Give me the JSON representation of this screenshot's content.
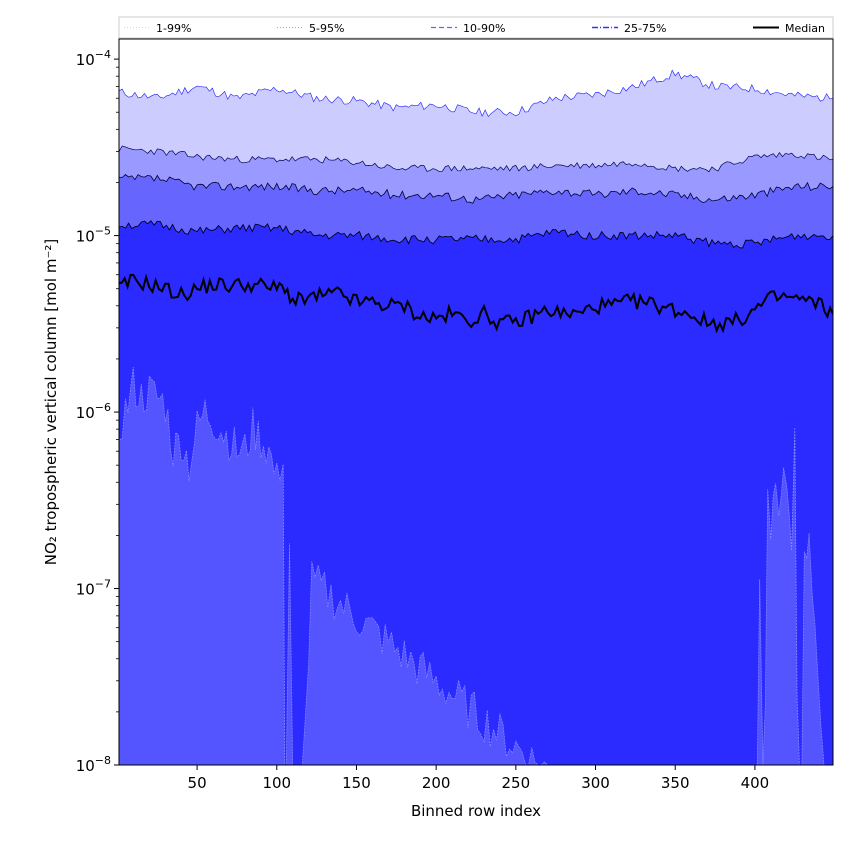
{
  "chart_data": {
    "type": "area",
    "xlabel": "Binned row index",
    "ylabel": "NO₂ tropospheric vertical column [mol m⁻²]",
    "xlim": [
      1,
      449
    ],
    "ylim": [
      1e-08,
      0.00013
    ],
    "yscale": "log",
    "grid": false,
    "legend_position": "top",
    "x_ticks": [
      50,
      100,
      150,
      200,
      250,
      300,
      350,
      400
    ],
    "x_tick_labels": [
      "50",
      "100",
      "150",
      "200",
      "250",
      "300",
      "350",
      "400"
    ],
    "y_ticks": [
      1e-08,
      1e-07,
      1e-06,
      1e-05,
      0.0001
    ],
    "y_tick_labels": [
      {
        "base": "10",
        "exp": "−8"
      },
      {
        "base": "10",
        "exp": "−7"
      },
      {
        "base": "10",
        "exp": "−6"
      },
      {
        "base": "10",
        "exp": "−5"
      },
      {
        "base": "10",
        "exp": "−4"
      }
    ],
    "series": [
      {
        "name": "1-99%",
        "color": "#ccccff",
        "style": "dotted",
        "upper": {
          "x": [
            1,
            25,
            50,
            75,
            100,
            125,
            150,
            175,
            200,
            225,
            250,
            275,
            300,
            325,
            350,
            375,
            400,
            425,
            449
          ],
          "y": [
            6.5e-05,
            6e-05,
            7e-05,
            6e-05,
            6.8e-05,
            6e-05,
            5.8e-05,
            5.3e-05,
            5.5e-05,
            5e-05,
            5e-05,
            6e-05,
            6.3e-05,
            7e-05,
            8.3e-05,
            7e-05,
            6.8e-05,
            6.2e-05,
            6e-05
          ]
        },
        "lower_note": "extends below axis except where shown",
        "lower": {
          "x": [
            1,
            5,
            10,
            15,
            20,
            25,
            30,
            35,
            40,
            45,
            50,
            55,
            60,
            65,
            70,
            75,
            80,
            85,
            90,
            95,
            100,
            104,
            105,
            106,
            108,
            110,
            112,
            122,
            400,
            403,
            405,
            408,
            410,
            413,
            415,
            418,
            420,
            423,
            425,
            428,
            431,
            434,
            449
          ],
          "y": [
            8e-07,
            1e-06,
            1.4e-06,
            1.2e-06,
            1.3e-06,
            1.2e-06,
            1.1e-06,
            6e-07,
            7e-07,
            5e-07,
            8e-07,
            1e-06,
            9e-07,
            8e-07,
            7e-07,
            6e-07,
            6e-07,
            8e-07,
            7e-07,
            6e-07,
            4e-07,
            6e-07,
            1e-09,
            1e-09,
            1.5e-07,
            1e-09,
            1e-09,
            1.1e-07,
            1e-09,
            1.4e-07,
            1e-09,
            3e-07,
            2e-07,
            4e-07,
            3e-07,
            5e-07,
            3e-07,
            2e-07,
            7e-07,
            1e-09,
            1.3e-07,
            1.7e-07,
            1e-09
          ]
        }
      },
      {
        "name": "5-95%",
        "color": "#9999ff",
        "style": "dotted",
        "upper": {
          "x": [
            1,
            25,
            50,
            75,
            100,
            125,
            150,
            175,
            200,
            225,
            250,
            275,
            300,
            325,
            350,
            375,
            400,
            425,
            449
          ],
          "y": [
            3.1e-05,
            3e-05,
            2.8e-05,
            2.7e-05,
            2.7e-05,
            2.7e-05,
            2.6e-05,
            2.4e-05,
            2.4e-05,
            2.4e-05,
            2.4e-05,
            2.5e-05,
            2.5e-05,
            2.6e-05,
            2.4e-05,
            2.4e-05,
            2.8e-05,
            2.9e-05,
            2.7e-05
          ]
        }
      },
      {
        "name": "10-90%",
        "color": "#6666ff",
        "style": "dashed",
        "upper": {
          "x": [
            1,
            25,
            50,
            75,
            100,
            125,
            150,
            175,
            200,
            225,
            250,
            275,
            300,
            325,
            350,
            375,
            400,
            425,
            449
          ],
          "y": [
            2.1e-05,
            2.1e-05,
            1.9e-05,
            1.9e-05,
            1.9e-05,
            1.8e-05,
            1.8e-05,
            1.7e-05,
            1.7e-05,
            1.6e-05,
            1.7e-05,
            1.8e-05,
            1.7e-05,
            1.8e-05,
            1.7e-05,
            1.6e-05,
            1.7e-05,
            1.9e-05,
            1.9e-05
          ]
        }
      },
      {
        "name": "25-75%",
        "color": "#3333ff",
        "style": "dashdot",
        "upper": {
          "x": [
            1,
            25,
            50,
            75,
            100,
            125,
            150,
            175,
            200,
            225,
            250,
            275,
            300,
            325,
            350,
            375,
            400,
            425,
            449
          ],
          "y": [
            1.15e-05,
            1.15e-05,
            1.05e-05,
            1.1e-05,
            1.1e-05,
            1e-05,
            1e-05,
            9.5e-06,
            9.5e-06,
            9.5e-06,
            9.5e-06,
            1.05e-05,
            1e-05,
            1e-05,
            1e-05,
            9e-06,
            9e-06,
            1e-05,
            1e-05
          ]
        }
      },
      {
        "name": "Median",
        "color": "#000000",
        "style": "solid",
        "values": {
          "x": [
            1,
            10,
            20,
            30,
            40,
            50,
            60,
            70,
            80,
            90,
            100,
            105,
            110,
            125,
            140,
            150,
            160,
            170,
            180,
            190,
            200,
            210,
            220,
            230,
            240,
            250,
            260,
            270,
            280,
            290,
            300,
            310,
            320,
            330,
            340,
            350,
            360,
            370,
            380,
            390,
            400,
            410,
            420,
            430,
            440,
            449
          ],
          "y": [
            5e-06,
            5.6e-06,
            5.3e-06,
            5e-06,
            4.6e-06,
            5e-06,
            5.3e-06,
            5.2e-06,
            5.3e-06,
            5.2e-06,
            5e-06,
            5.2e-06,
            4.2e-06,
            4.5e-06,
            4.7e-06,
            4.2e-06,
            4.2e-06,
            4e-06,
            4e-06,
            3.5e-06,
            3.4e-06,
            3.6e-06,
            3.3e-06,
            3.6e-06,
            3.2e-06,
            3.2e-06,
            3.5e-06,
            3.8e-06,
            3.6e-06,
            3.6e-06,
            4e-06,
            4e-06,
            4.2e-06,
            4.2e-06,
            4e-06,
            3.8e-06,
            3.6e-06,
            3.2e-06,
            3.2e-06,
            3.3e-06,
            3.8e-06,
            4.4e-06,
            4.5e-06,
            4.3e-06,
            4.1e-06,
            3.6e-06
          ]
        }
      }
    ],
    "fill_floor_color": "#2b2bff"
  }
}
